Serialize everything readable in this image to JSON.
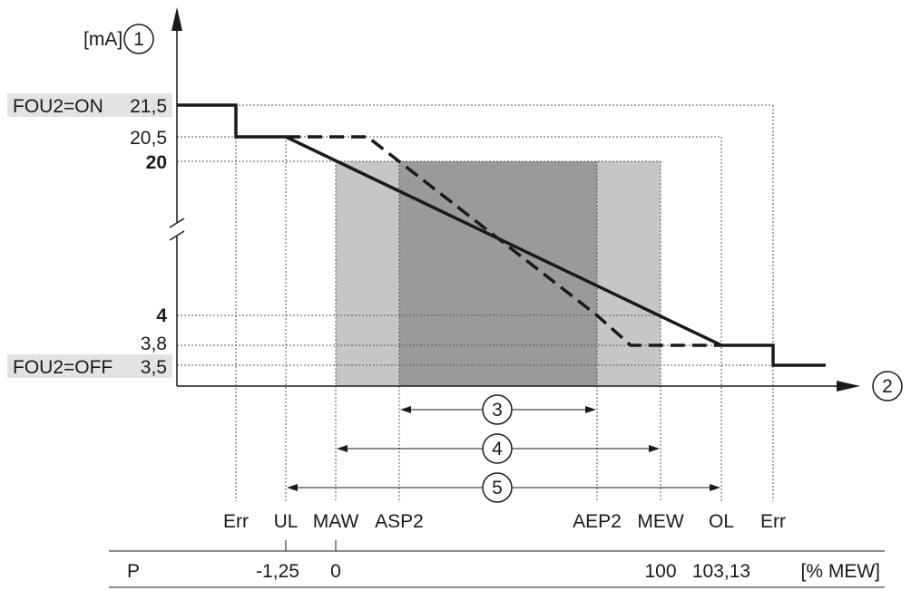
{
  "y_axis": {
    "unit": "[mA]",
    "callout": "1",
    "labels": {
      "fou_on": "FOU2=ON",
      "v21_5": "21,5",
      "v20_5": "20,5",
      "v20": "20",
      "v4": "4",
      "v3_8": "3,8",
      "fou_off": "FOU2=OFF",
      "v3_5": "3,5"
    }
  },
  "x_axis": {
    "callout": "2",
    "labels": {
      "err_left": "Err",
      "ul": "UL",
      "maw": "MAW",
      "asp2": "ASP2",
      "aep2": "AEP2",
      "mew": "MEW",
      "ol": "OL",
      "err_right": "Err"
    }
  },
  "ranges": {
    "r3": "3",
    "r4": "4",
    "r5": "5"
  },
  "table": {
    "p": "P",
    "v_neg": "-1,25",
    "v_zero": "0",
    "v_100": "100",
    "v_103": "103,13",
    "unit": "[% MEW]"
  },
  "colors": {
    "shade_light": "#c6c6c6",
    "shade_dark": "#9a9a9a",
    "label_bg": "#e3e3e3",
    "line": "#1a1a1a"
  }
}
